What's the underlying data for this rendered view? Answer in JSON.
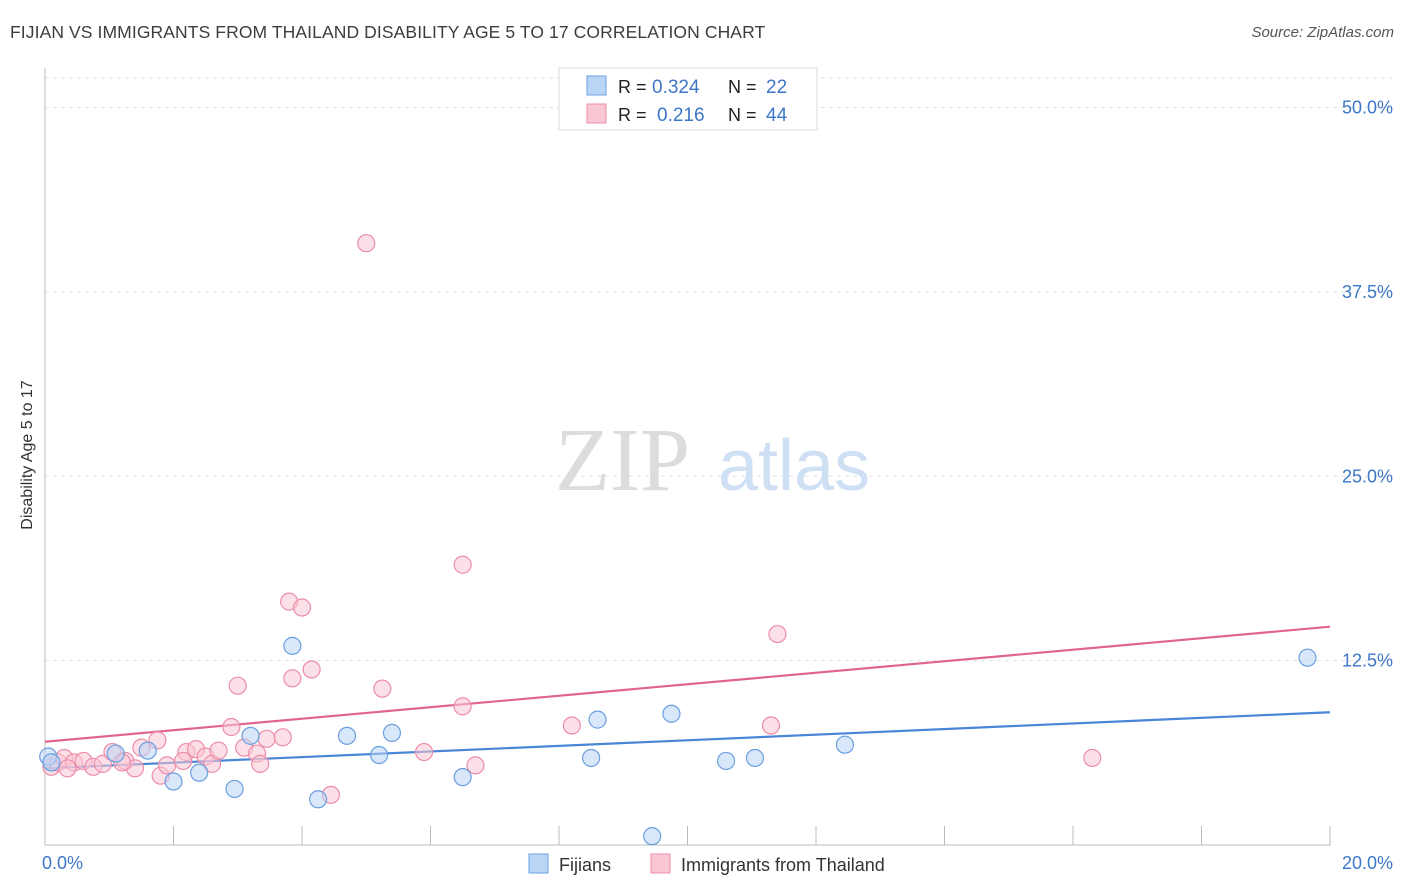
{
  "title": "FIJIAN VS IMMIGRANTS FROM THAILAND DISABILITY AGE 5 TO 17 CORRELATION CHART",
  "source": "Source: ZipAtlas.com",
  "watermark": {
    "zip": "ZIP",
    "atlas": "atlas"
  },
  "legend_stats": {
    "r_label": "R =",
    "n_label": "N =",
    "rows": [
      {
        "r": "0.324",
        "n": "22",
        "fill": "#b9d4f5",
        "stroke": "#6a9fe0"
      },
      {
        "r": "0.216",
        "n": "44",
        "fill": "#f9c6d4",
        "stroke": "#ec8daa"
      }
    ]
  },
  "chart_data": {
    "type": "scatter",
    "ylabel": "Disability Age 5 to 17",
    "xlim": [
      0,
      20
    ],
    "ylim": [
      0,
      52
    ],
    "x_tick_labels": [
      "0.0%",
      "20.0%"
    ],
    "y_ticks": [
      12.5,
      25.0,
      37.5,
      50.0
    ],
    "y_tick_labels": [
      "12.5%",
      "25.0%",
      "37.5%",
      "50.0%"
    ],
    "legend_position": "bottom",
    "grid": true,
    "series": [
      {
        "name": "Fijians",
        "color": "#4a86d8",
        "fill": "#b9d4f5",
        "stroke": "#6a9fe0",
        "trend": [
          [
            0,
            5.2
          ],
          [
            20,
            9.0
          ]
        ],
        "points": [
          [
            0.05,
            6.0
          ],
          [
            0.1,
            5.6
          ],
          [
            1.1,
            6.2
          ],
          [
            1.6,
            6.4
          ],
          [
            2.0,
            4.3
          ],
          [
            2.4,
            4.9
          ],
          [
            2.95,
            3.8
          ],
          [
            3.2,
            7.4
          ],
          [
            3.85,
            13.5
          ],
          [
            4.25,
            3.1
          ],
          [
            4.7,
            7.4
          ],
          [
            5.2,
            6.1
          ],
          [
            5.4,
            7.6
          ],
          [
            6.5,
            4.6
          ],
          [
            8.6,
            8.5
          ],
          [
            8.5,
            5.9
          ],
          [
            9.45,
            0.6
          ],
          [
            9.75,
            8.9
          ],
          [
            10.6,
            5.7
          ],
          [
            11.05,
            5.9
          ],
          [
            12.45,
            6.8
          ],
          [
            19.65,
            12.7
          ]
        ]
      },
      {
        "name": "Immigrants from Thailand",
        "color": "#e0648f",
        "fill": "#f9c6d4",
        "stroke": "#ec8daa",
        "trend": [
          [
            0,
            7.0
          ],
          [
            20,
            14.8
          ]
        ],
        "points": [
          [
            0.1,
            5.3
          ],
          [
            0.2,
            5.6
          ],
          [
            0.3,
            5.9
          ],
          [
            0.45,
            5.6
          ],
          [
            0.6,
            5.7
          ],
          [
            0.75,
            5.3
          ],
          [
            0.9,
            5.5
          ],
          [
            1.05,
            6.3
          ],
          [
            1.25,
            5.7
          ],
          [
            1.4,
            5.2
          ],
          [
            1.5,
            6.6
          ],
          [
            1.8,
            4.7
          ],
          [
            1.9,
            5.4
          ],
          [
            1.75,
            7.1
          ],
          [
            2.2,
            6.3
          ],
          [
            2.35,
            6.5
          ],
          [
            2.5,
            6.0
          ],
          [
            2.6,
            5.5
          ],
          [
            2.9,
            8.0
          ],
          [
            3.0,
            10.8
          ],
          [
            3.1,
            6.6
          ],
          [
            3.3,
            6.2
          ],
          [
            3.35,
            5.5
          ],
          [
            2.7,
            6.4
          ],
          [
            3.45,
            7.2
          ],
          [
            3.7,
            7.3
          ],
          [
            3.8,
            16.5
          ],
          [
            3.85,
            11.3
          ],
          [
            4.0,
            16.1
          ],
          [
            4.15,
            11.9
          ],
          [
            4.45,
            3.4
          ],
          [
            5.0,
            40.8
          ],
          [
            5.25,
            10.6
          ],
          [
            5.9,
            6.3
          ],
          [
            6.5,
            9.4
          ],
          [
            6.7,
            5.4
          ],
          [
            6.5,
            19.0
          ],
          [
            8.2,
            8.1
          ],
          [
            11.4,
            14.3
          ],
          [
            11.3,
            8.1
          ],
          [
            16.3,
            5.9
          ],
          [
            1.2,
            5.6
          ],
          [
            0.35,
            5.2
          ],
          [
            2.15,
            5.7
          ]
        ]
      }
    ]
  }
}
